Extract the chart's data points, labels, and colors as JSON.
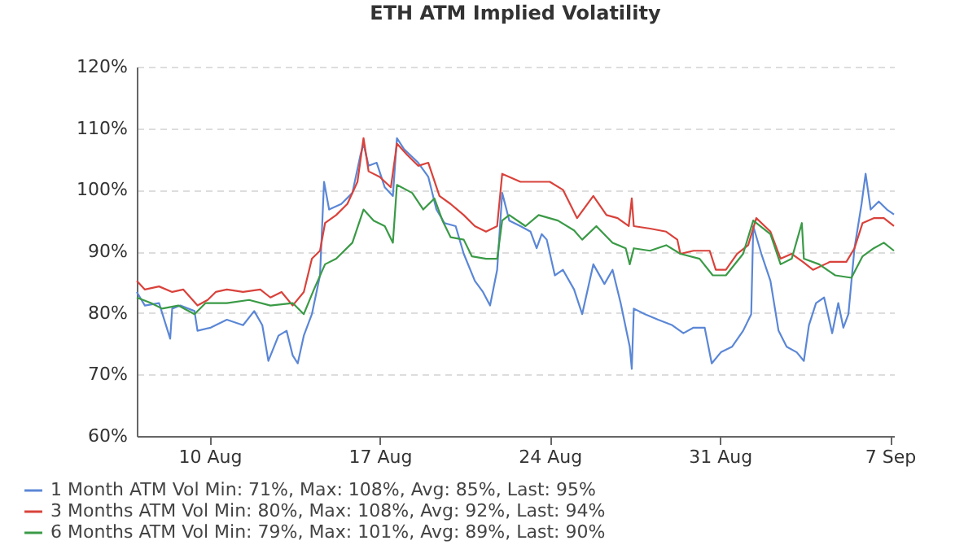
{
  "chart_data": {
    "type": "line",
    "title": "ETH ATM Implied Volatility",
    "xlim": [
      "--08-07T00:00",
      "--09-07T04:00"
    ],
    "xticks": [
      {
        "value": "--08-10T00:00",
        "label": "10 Aug"
      },
      {
        "value": "--08-17T00:00",
        "label": "17 Aug"
      },
      {
        "value": "--08-24T00:00",
        "label": "24 Aug"
      },
      {
        "value": "--08-31T00:00",
        "label": "31 Aug"
      },
      {
        "value": "--09-07T00:00",
        "label": "7 Sep"
      }
    ],
    "ylim": [
      60,
      120
    ],
    "yticks": [
      {
        "value": 60,
        "label": "60%"
      },
      {
        "value": 70,
        "label": "70%"
      },
      {
        "value": 80,
        "label": "80%"
      },
      {
        "value": 90,
        "label": "90%"
      },
      {
        "value": 100,
        "label": "100%"
      },
      {
        "value": 110,
        "label": "110%"
      },
      {
        "value": 120,
        "label": "120%"
      }
    ],
    "grid": "y",
    "legend": "bottom left",
    "line_style": "solid",
    "marker": "none",
    "series": [
      {
        "name": "1 Month ATM Vol Min: 71%, Max: 108%, Avg: 85%, Last: 95%",
        "color": "#5b87d6",
        "x": [
          "--08-07T00:00",
          "--08-07T08:00",
          "--08-07T22:00",
          "--08-08T09:00",
          "--08-08T11:00",
          "--08-08T19:00",
          "--08-09T09:00",
          "--08-09T12:00",
          "--08-10T01:00",
          "--08-10T17:00",
          "--08-11T09:00",
          "--08-11T20:00",
          "--08-12T04:00",
          "--08-12T10:00",
          "--08-12T20:00",
          "--08-13T04:00",
          "--08-13T10:00",
          "--08-13T15:00",
          "--08-13T21:00",
          "--08-14T05:00",
          "--08-14T13:00",
          "--08-14T17:00",
          "--08-14T22:00",
          "--08-15T10:00",
          "--08-15T21:00",
          "--08-16T05:00",
          "--08-16T08:00",
          "--08-16T13:00",
          "--08-16T21:00",
          "--08-17T05:00",
          "--08-17T13:00",
          "--08-17T17:00",
          "--08-18T00:00",
          "--08-18T14:00",
          "--08-19T00:00",
          "--08-19T08:00",
          "--08-19T16:00",
          "--08-20T03:00",
          "--08-20T11:00",
          "--08-20T22:00",
          "--08-21T06:00",
          "--08-21T13:00",
          "--08-21T20:00",
          "--08-22T01:00",
          "--08-22T08:00",
          "--08-22T19:00",
          "--08-23T05:00",
          "--08-23T11:00",
          "--08-23T16:00",
          "--08-23T21:00",
          "--08-24T05:00",
          "--08-24T13:00",
          "--08-25T00:00",
          "--08-25T08:00",
          "--08-25T19:00",
          "--08-26T06:00",
          "--08-26T14:00",
          "--08-26T22:00",
          "--08-27T07:00",
          "--08-27T09:00",
          "--08-27T11:00",
          "--08-27T22:00",
          "--08-28T11:00",
          "--08-29T01:00",
          "--08-29T12:00",
          "--08-29T22:00",
          "--08-30T09:00",
          "--08-30T16:00",
          "--08-31T01:00",
          "--08-31T12:00",
          "--08-31T23:00",
          "--09-01T07:00",
          "--09-01T09:00",
          "--09-01T17:00",
          "--09-02T02:00",
          "--09-02T10:00",
          "--09-02T18:00",
          "--09-03T04:00",
          "--09-03T11:00",
          "--09-03T16:00",
          "--09-03T23:00",
          "--09-04T07:00",
          "--09-04T15:00",
          "--09-04T21:00",
          "--09-05T02:00",
          "--09-05T07:00",
          "--09-05T13:00",
          "--09-05T20:00",
          "--09-06T00:00",
          "--09-06T05:00",
          "--09-06T13:00",
          "--09-06T21:00",
          "--09-07T04:00"
        ],
        "values": [
          83.4,
          81.2,
          81.6,
          75.8,
          80.7,
          81.2,
          80.3,
          77.1,
          77.6,
          78.9,
          78.0,
          80.3,
          78.0,
          72.2,
          76.3,
          77.1,
          73.1,
          71.8,
          76.3,
          79.8,
          86.1,
          101.3,
          96.8,
          97.7,
          99.5,
          105.7,
          107.5,
          103.9,
          104.4,
          100.4,
          99.0,
          108.4,
          106.6,
          104.4,
          102.1,
          96.8,
          94.6,
          94.1,
          89.6,
          85.2,
          83.4,
          81.2,
          87.0,
          99.5,
          95.0,
          94.1,
          93.2,
          90.5,
          92.8,
          91.9,
          86.1,
          87.0,
          83.8,
          79.8,
          87.9,
          84.7,
          87.0,
          81.6,
          74.5,
          70.9,
          80.7,
          79.8,
          78.9,
          78.0,
          76.7,
          77.6,
          77.6,
          71.8,
          73.6,
          74.5,
          77.1,
          79.8,
          94.1,
          89.6,
          85.2,
          77.1,
          74.5,
          73.6,
          72.2,
          78.0,
          81.6,
          82.5,
          76.7,
          81.6,
          77.6,
          79.8,
          90.5,
          97.7,
          102.6,
          96.8,
          98.1,
          96.8,
          96.0
        ]
      },
      {
        "name": "3 Months ATM Vol Min: 80%, Max: 108%, Avg: 92%, Last: 94%",
        "color": "#d9423b",
        "x": [
          "--08-07T00:00",
          "--08-07T08:00",
          "--08-07T22:00",
          "--08-08T11:00",
          "--08-08T22:00",
          "--08-09T12:00",
          "--08-09T22:00",
          "--08-10T06:00",
          "--08-10T17:00",
          "--08-11T09:00",
          "--08-12T02:00",
          "--08-12T12:00",
          "--08-12T23:00",
          "--08-13T10:00",
          "--08-13T21:00",
          "--08-14T05:00",
          "--08-14T13:00",
          "--08-14T18:00",
          "--08-15T05:00",
          "--08-15T16:00",
          "--08-16T02:00",
          "--08-16T08:00",
          "--08-16T13:00",
          "--08-17T00:00",
          "--08-17T11:00",
          "--08-17T17:00",
          "--08-18T03:00",
          "--08-18T14:00",
          "--08-19T00:00",
          "--08-19T11:00",
          "--08-19T22:00",
          "--08-20T11:00",
          "--08-20T22:00",
          "--08-21T09:00",
          "--08-21T20:00",
          "--08-22T01:00",
          "--08-22T19:00",
          "--08-23T11:00",
          "--08-24T00:00",
          "--08-24T13:00",
          "--08-25T03:00",
          "--08-25T19:00",
          "--08-26T08:00",
          "--08-26T19:00",
          "--08-27T06:00",
          "--08-27T09:00",
          "--08-27T11:00",
          "--08-28T03:00",
          "--08-28T19:00",
          "--08-29T06:00",
          "--08-29T09:00",
          "--08-29T22:00",
          "--08-30T14:00",
          "--08-30T20:00",
          "--08-31T06:00",
          "--08-31T17:00",
          "--09-01T04:00",
          "--09-01T12:00",
          "--09-02T02:00",
          "--09-02T12:00",
          "--09-02T23:00",
          "--09-03T10:00",
          "--09-03T20:00",
          "--09-04T13:00",
          "--09-05T05:00",
          "--09-05T13:00",
          "--09-05T21:00",
          "--09-06T08:00",
          "--09-06T18:00",
          "--09-07T04:00"
        ],
        "values": [
          85.2,
          83.8,
          84.3,
          83.4,
          83.8,
          81.2,
          82.1,
          83.4,
          83.8,
          83.4,
          83.8,
          82.5,
          83.4,
          81.2,
          83.4,
          88.8,
          90.1,
          94.6,
          95.9,
          97.7,
          101.3,
          108.4,
          103.0,
          102.1,
          100.4,
          107.5,
          105.7,
          103.9,
          104.4,
          99.0,
          97.7,
          95.9,
          94.1,
          93.2,
          94.1,
          102.6,
          101.3,
          101.3,
          101.3,
          100.0,
          95.4,
          99.0,
          95.9,
          95.4,
          94.1,
          98.6,
          94.1,
          93.7,
          93.2,
          91.9,
          89.6,
          90.1,
          90.1,
          87.0,
          87.0,
          89.6,
          91.0,
          95.4,
          93.2,
          88.8,
          89.6,
          88.3,
          87.0,
          88.3,
          88.3,
          90.5,
          94.6,
          95.4,
          95.4,
          94.1
        ]
      },
      {
        "name": "6 Months ATM Vol Min: 79%, Max: 101%, Avg: 89%, Last: 90%",
        "color": "#3a9a46",
        "x": [
          "--08-07T00:00",
          "--08-07T14:00",
          "--08-08T01:00",
          "--08-08T17:00",
          "--08-09T09:00",
          "--08-09T20:00",
          "--08-10T17:00",
          "--08-11T15:00",
          "--08-12T12:00",
          "--08-13T10:00",
          "--08-13T21:00",
          "--08-14T07:00",
          "--08-14T18:00",
          "--08-15T05:00",
          "--08-15T21:00",
          "--08-16T08:00",
          "--08-16T18:00",
          "--08-17T05:00",
          "--08-17T13:00",
          "--08-17T17:00",
          "--08-18T08:00",
          "--08-18T19:00",
          "--08-19T06:00",
          "--08-19T14:00",
          "--08-19T22:00",
          "--08-20T11:00",
          "--08-20T19:00",
          "--08-21T09:00",
          "--08-21T20:00",
          "--08-22T01:00",
          "--08-22T08:00",
          "--08-23T00:00",
          "--08-23T13:00",
          "--08-24T08:00",
          "--08-25T00:00",
          "--08-25T08:00",
          "--08-25T22:00",
          "--08-26T14:00",
          "--08-27T03:00",
          "--08-27T07:00",
          "--08-27T11:00",
          "--08-28T03:00",
          "--08-28T19:00",
          "--08-29T09:00",
          "--08-30T04:00",
          "--08-30T17:00",
          "--08-31T06:00",
          "--08-31T23:00",
          "--09-01T09:00",
          "--09-02T02:00",
          "--09-02T12:00",
          "--09-02T23:00",
          "--09-03T09:00",
          "--09-03T11:00",
          "--09-04T02:00",
          "--09-04T18:00",
          "--09-05T10:00",
          "--09-05T21:00",
          "--09-06T08:00",
          "--09-06T18:00",
          "--09-07T04:00"
        ],
        "values": [
          82.5,
          81.6,
          80.7,
          81.2,
          79.8,
          81.6,
          81.6,
          82.1,
          81.2,
          81.6,
          79.8,
          83.8,
          87.9,
          88.8,
          91.4,
          96.8,
          95.0,
          94.1,
          91.4,
          100.8,
          99.5,
          96.8,
          98.6,
          95.0,
          92.3,
          91.9,
          89.2,
          88.8,
          88.8,
          95.0,
          95.9,
          94.1,
          95.9,
          95.0,
          93.4,
          91.9,
          94.1,
          91.4,
          90.5,
          87.9,
          90.5,
          90.1,
          91.0,
          89.6,
          88.8,
          86.1,
          86.1,
          89.6,
          95.0,
          92.8,
          87.9,
          88.8,
          94.6,
          88.8,
          87.9,
          86.1,
          85.7,
          89.2,
          90.5,
          91.4,
          90.1
        ]
      }
    ]
  }
}
